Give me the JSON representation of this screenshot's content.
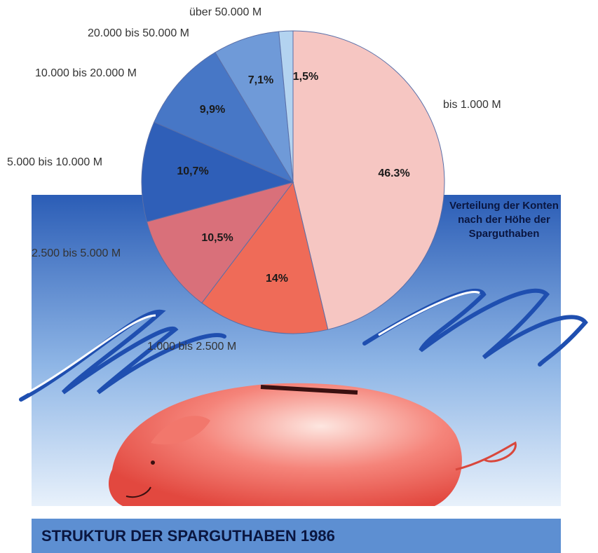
{
  "chart_data": {
    "type": "pie",
    "title": "Verteilung der Konten nach der Höhe der Sparguthaben",
    "footer_title": "STRUKTUR DER SPARGUTHABEN 1986",
    "categories": [
      "bis 1.000 M",
      "1.000 bis 2.500 M",
      "2.500 bis 5.000 M",
      "5.000 bis 10.000 M",
      "10.000 bis 20.000 M",
      "20.000 bis 50.000 M",
      "über 50.000 M"
    ],
    "values": [
      46.3,
      14,
      10.5,
      10.7,
      9.9,
      7.1,
      1.5
    ],
    "value_labels": [
      "46.3%",
      "14%",
      "10,5%",
      "10,7%",
      "9,9%",
      "7,1%",
      "1,5%"
    ],
    "colors": [
      "#f6c6c2",
      "#ef6b58",
      "#d9707a",
      "#2f5fb8",
      "#4777c6",
      "#6f9ad8",
      "#b3d3f0"
    ]
  }
}
